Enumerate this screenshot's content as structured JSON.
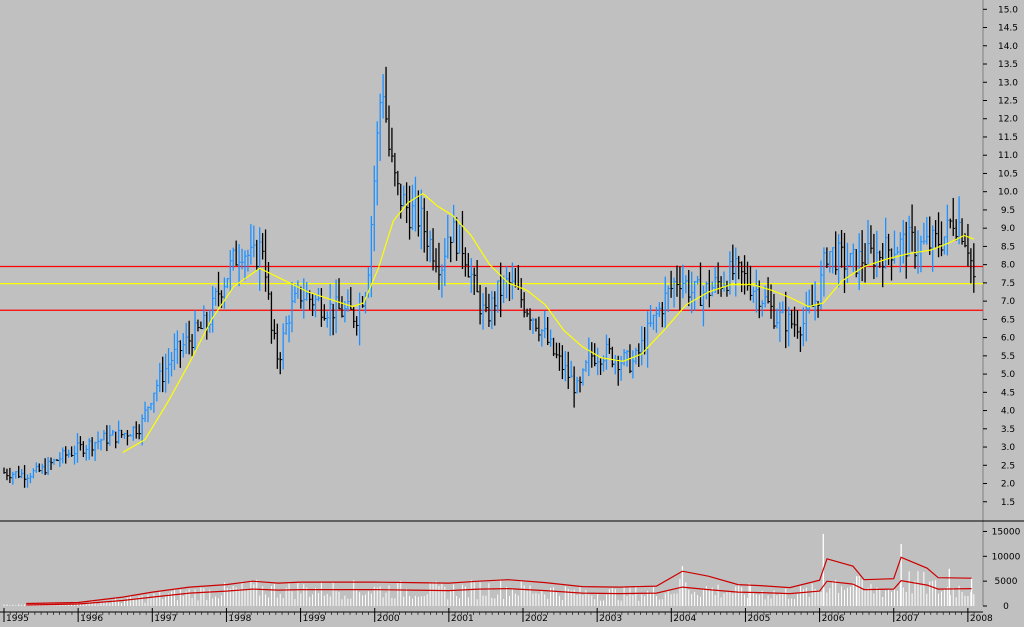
{
  "colors": {
    "background": "#c0c0c0",
    "up_bar": "#1e90ff",
    "down_bar": "#000000",
    "moving_average": "#ffff00",
    "horizontal_lines": "#ff0000",
    "reference_line": "#ffff00",
    "volume_bar": "#ffffff",
    "volume_averages": "#cc0000"
  },
  "chart_data": [
    {
      "type": "bar",
      "subtype": "ohlc-price",
      "x_years": [
        "1995",
        "1996",
        "1997",
        "1998",
        "1999",
        "2000",
        "2001",
        "2002",
        "2003",
        "2004",
        "2005",
        "2006",
        "2007",
        "2008"
      ],
      "x_year_positions": [
        1995.0,
        1996.0,
        1997.0,
        1998.0,
        1999.0,
        2000.0,
        2001.0,
        2002.0,
        2003.0,
        2004.0,
        2005.0,
        2006.0,
        2007.0,
        2008.0
      ],
      "ylim": [
        1.0,
        15.2
      ],
      "y_ticks": [
        "1.5",
        "2.0",
        "2.5",
        "3.0",
        "3.5",
        "4.0",
        "4.5",
        "5.0",
        "5.5",
        "6.0",
        "6.5",
        "7.0",
        "7.5",
        "8.0",
        "8.5",
        "9.0",
        "9.5",
        "10.0",
        "10.5",
        "11.0",
        "11.5",
        "12.0",
        "12.5",
        "13.0",
        "13.5",
        "14.0",
        "14.5",
        "15.0"
      ],
      "horizontal_lines": [
        {
          "value": 7.95,
          "color": "red"
        },
        {
          "value": 7.48,
          "color": "yellow"
        },
        {
          "value": 6.75,
          "color": "red"
        }
      ],
      "price_path": [
        [
          1995.0,
          2.3
        ],
        [
          1995.3,
          2.25
        ],
        [
          1995.5,
          2.35
        ],
        [
          1995.75,
          2.7
        ],
        [
          1996.0,
          2.95
        ],
        [
          1996.3,
          3.2
        ],
        [
          1996.6,
          3.35
        ],
        [
          1996.85,
          3.6
        ],
        [
          1997.0,
          4.5
        ],
        [
          1997.25,
          5.4
        ],
        [
          1997.5,
          5.95
        ],
        [
          1997.75,
          6.4
        ],
        [
          1997.9,
          7.3
        ],
        [
          1998.05,
          7.9
        ],
        [
          1998.2,
          8.5
        ],
        [
          1998.35,
          8.1
        ],
        [
          1998.5,
          8.6
        ],
        [
          1998.6,
          6.2
        ],
        [
          1998.7,
          5.4
        ],
        [
          1998.85,
          6.7
        ],
        [
          1999.0,
          7.2
        ],
        [
          1999.2,
          7.0
        ],
        [
          1999.4,
          6.8
        ],
        [
          1999.6,
          6.7
        ],
        [
          1999.75,
          6.6
        ],
        [
          1999.9,
          7.6
        ],
        [
          2000.0,
          10.5
        ],
        [
          2000.1,
          13.2
        ],
        [
          2000.2,
          11.0
        ],
        [
          2000.3,
          10.0
        ],
        [
          2000.45,
          9.5
        ],
        [
          2000.6,
          9.3
        ],
        [
          2000.75,
          8.6
        ],
        [
          2000.9,
          8.0
        ],
        [
          2001.0,
          9.0
        ],
        [
          2001.2,
          8.5
        ],
        [
          2001.35,
          7.3
        ],
        [
          2001.5,
          6.5
        ],
        [
          2001.65,
          7.2
        ],
        [
          2001.8,
          7.5
        ],
        [
          2002.0,
          7.0
        ],
        [
          2002.2,
          6.4
        ],
        [
          2002.4,
          5.6
        ],
        [
          2002.6,
          5.0
        ],
        [
          2002.75,
          4.5
        ],
        [
          2002.9,
          5.5
        ],
        [
          2003.1,
          5.6
        ],
        [
          2003.3,
          5.4
        ],
        [
          2003.5,
          5.3
        ],
        [
          2003.7,
          6.2
        ],
        [
          2003.9,
          7.0
        ],
        [
          2004.1,
          7.7
        ],
        [
          2004.3,
          7.2
        ],
        [
          2004.5,
          7.3
        ],
        [
          2004.7,
          7.6
        ],
        [
          2004.85,
          7.8
        ],
        [
          2005.0,
          7.6
        ],
        [
          2005.2,
          7.2
        ],
        [
          2005.4,
          6.6
        ],
        [
          2005.6,
          6.4
        ],
        [
          2005.8,
          6.4
        ],
        [
          2006.0,
          7.3
        ],
        [
          2006.1,
          8.4
        ],
        [
          2006.25,
          8.2
        ],
        [
          2006.4,
          8.0
        ],
        [
          2006.6,
          8.2
        ],
        [
          2006.8,
          8.3
        ],
        [
          2007.0,
          8.5
        ],
        [
          2007.2,
          8.6
        ],
        [
          2007.4,
          8.5
        ],
        [
          2007.55,
          8.6
        ],
        [
          2007.7,
          8.8
        ],
        [
          2007.8,
          9.3
        ],
        [
          2007.9,
          9.1
        ],
        [
          2008.0,
          8.6
        ],
        [
          2008.08,
          7.6
        ]
      ],
      "moving_average": [
        [
          1996.6,
          2.85
        ],
        [
          1996.9,
          3.2
        ],
        [
          1997.2,
          4.2
        ],
        [
          1997.5,
          5.3
        ],
        [
          1997.8,
          6.5
        ],
        [
          1998.1,
          7.4
        ],
        [
          1998.45,
          7.9
        ],
        [
          1998.8,
          7.55
        ],
        [
          1999.1,
          7.25
        ],
        [
          1999.4,
          7.05
        ],
        [
          1999.7,
          6.85
        ],
        [
          1999.85,
          6.95
        ],
        [
          2000.05,
          7.9
        ],
        [
          2000.25,
          9.2
        ],
        [
          2000.45,
          9.7
        ],
        [
          2000.65,
          9.95
        ],
        [
          2000.85,
          9.6
        ],
        [
          2001.05,
          9.35
        ],
        [
          2001.3,
          8.8
        ],
        [
          2001.55,
          8.0
        ],
        [
          2001.8,
          7.5
        ],
        [
          2002.05,
          7.3
        ],
        [
          2002.3,
          6.9
        ],
        [
          2002.55,
          6.2
        ],
        [
          2002.8,
          5.75
        ],
        [
          2003.05,
          5.45
        ],
        [
          2003.35,
          5.35
        ],
        [
          2003.6,
          5.55
        ],
        [
          2003.9,
          6.2
        ],
        [
          2004.2,
          6.9
        ],
        [
          2004.5,
          7.25
        ],
        [
          2004.8,
          7.45
        ],
        [
          2005.1,
          7.45
        ],
        [
          2005.35,
          7.3
        ],
        [
          2005.6,
          7.1
        ],
        [
          2005.85,
          6.85
        ],
        [
          2006.05,
          6.95
        ],
        [
          2006.3,
          7.55
        ],
        [
          2006.6,
          7.95
        ],
        [
          2006.9,
          8.15
        ],
        [
          2007.2,
          8.3
        ],
        [
          2007.5,
          8.4
        ],
        [
          2007.75,
          8.6
        ],
        [
          2007.95,
          8.8
        ],
        [
          2008.08,
          8.7
        ]
      ]
    },
    {
      "type": "bar",
      "subtype": "volume",
      "ylim": [
        0,
        16500
      ],
      "y_ticks": [
        "0",
        "5000",
        "10000",
        "15000"
      ],
      "spikes": [
        [
          2004.15,
          8000
        ],
        [
          2005.05,
          4500
        ],
        [
          2006.05,
          14500
        ],
        [
          2006.5,
          6000
        ],
        [
          2007.1,
          12500
        ],
        [
          2007.75,
          7500
        ],
        [
          2008.05,
          5500
        ]
      ],
      "average_upper": [
        [
          1995.3,
          500
        ],
        [
          1996.0,
          700
        ],
        [
          1996.6,
          1800
        ],
        [
          1997.0,
          2800
        ],
        [
          1997.5,
          3800
        ],
        [
          1998.0,
          4300
        ],
        [
          1998.35,
          5000
        ],
        [
          1998.7,
          4600
        ],
        [
          1999.0,
          4800
        ],
        [
          1999.5,
          4800
        ],
        [
          2000.0,
          4800
        ],
        [
          2000.5,
          4700
        ],
        [
          2001.0,
          4600
        ],
        [
          2001.4,
          5000
        ],
        [
          2001.8,
          5300
        ],
        [
          2002.3,
          4700
        ],
        [
          2002.8,
          3900
        ],
        [
          2003.3,
          3800
        ],
        [
          2003.8,
          4000
        ],
        [
          2004.15,
          7000
        ],
        [
          2004.5,
          6000
        ],
        [
          2004.9,
          4300
        ],
        [
          2005.2,
          4100
        ],
        [
          2005.6,
          3700
        ],
        [
          2006.0,
          5200
        ],
        [
          2006.1,
          9500
        ],
        [
          2006.45,
          8000
        ],
        [
          2006.6,
          5300
        ],
        [
          2007.0,
          5500
        ],
        [
          2007.1,
          9800
        ],
        [
          2007.45,
          7600
        ],
        [
          2007.6,
          5700
        ],
        [
          2008.05,
          5600
        ]
      ],
      "average_lower": [
        [
          1995.3,
          200
        ],
        [
          1996.0,
          400
        ],
        [
          1996.6,
          1100
        ],
        [
          1997.0,
          1800
        ],
        [
          1997.5,
          2600
        ],
        [
          1998.0,
          3000
        ],
        [
          1998.35,
          3400
        ],
        [
          1998.7,
          3200
        ],
        [
          1999.0,
          3300
        ],
        [
          1999.5,
          3300
        ],
        [
          2000.0,
          3300
        ],
        [
          2000.5,
          3200
        ],
        [
          2001.0,
          3100
        ],
        [
          2001.4,
          3400
        ],
        [
          2001.8,
          3500
        ],
        [
          2002.3,
          3100
        ],
        [
          2002.8,
          2600
        ],
        [
          2003.3,
          2500
        ],
        [
          2003.8,
          2600
        ],
        [
          2004.15,
          3800
        ],
        [
          2004.5,
          3300
        ],
        [
          2004.9,
          2800
        ],
        [
          2005.2,
          2700
        ],
        [
          2005.6,
          2500
        ],
        [
          2006.0,
          3000
        ],
        [
          2006.1,
          5000
        ],
        [
          2006.45,
          4400
        ],
        [
          2006.6,
          3300
        ],
        [
          2007.0,
          3400
        ],
        [
          2007.1,
          5100
        ],
        [
          2007.45,
          4200
        ],
        [
          2007.6,
          3400
        ],
        [
          2008.05,
          3500
        ]
      ]
    }
  ]
}
